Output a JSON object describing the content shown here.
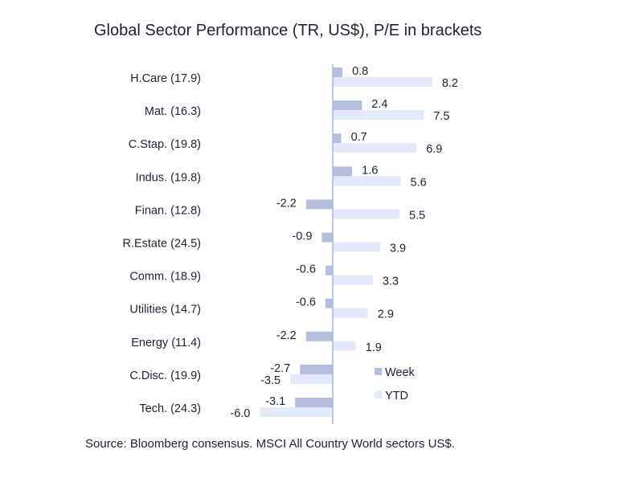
{
  "chart_data": {
    "type": "bar",
    "orientation": "horizontal",
    "title": "Global Sector Performance (TR, US$), P/E in brackets",
    "source": "Source: Bloomberg consensus. MSCI All Country World sectors US$.",
    "categories": [
      "H.Care (17.9)",
      "Mat. (16.3)",
      "C.Stap. (19.8)",
      "Indus. (19.8)",
      "Finan. (12.8)",
      "R.Estate (24.5)",
      "Comm. (18.9)",
      "Utilities (14.7)",
      "Energy (11.4)",
      "C.Disc. (19.9)",
      "Tech. (24.3)"
    ],
    "series": [
      {
        "name": "Week",
        "values": [
          0.8,
          2.4,
          0.7,
          1.6,
          -2.2,
          -0.9,
          -0.6,
          -0.6,
          -2.2,
          -2.7,
          -3.1
        ],
        "color": "#b6bedd"
      },
      {
        "name": "YTD",
        "values": [
          8.2,
          7.5,
          6.9,
          5.6,
          5.5,
          3.9,
          3.3,
          2.9,
          1.9,
          -3.5,
          -6.0
        ],
        "color": "#e3e8fb"
      }
    ],
    "data_labels": {
      "Week": [
        "0.8",
        "2.4",
        "0.7",
        "1.6",
        "-2.2",
        "-0.9",
        "-0.6",
        "-0.6",
        "-2.2",
        "-2.7",
        "-3.1"
      ],
      "YTD": [
        "8.2",
        "7.5",
        "6.9",
        "5.6",
        "5.5",
        "3.9",
        "3.3",
        "2.9",
        "1.9",
        "-3.5",
        "-6.0"
      ]
    },
    "axis_color": "#a9b6e6",
    "legend_position": "bottom-right",
    "grid": false
  }
}
